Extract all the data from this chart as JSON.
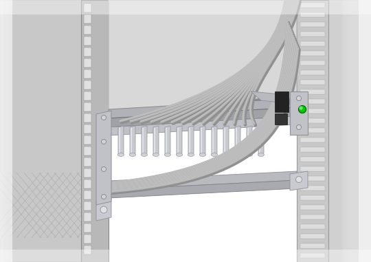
{
  "background_color": "#ffffff",
  "fig_width": 5.4,
  "fig_height": 3.81,
  "dpi": 100,
  "left_panel_color": "#c8c8c8",
  "right_panel_color": "#d0d0d0",
  "device_top_color": "#d5d5d5",
  "cable_color_main": "#b8b8b8",
  "cable_color_shadow": "#909090",
  "cable_color_highlight": "#d0d0d0",
  "bracket_color": "#a8aab0",
  "bracket_dark": "#808088",
  "green_dot_color": "#00cc00",
  "black_bar_color": "#222222",
  "rack_left_color": "#b8b8b8",
  "rack_right_color": "#c0c0c0"
}
